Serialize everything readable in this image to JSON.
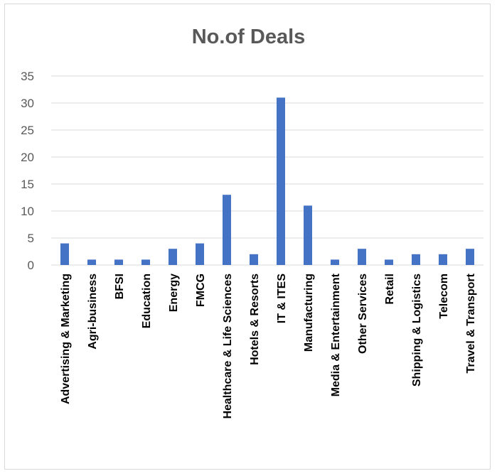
{
  "chart_data": {
    "type": "bar",
    "title": "No.of Deals",
    "xlabel": "",
    "ylabel": "",
    "ylim": [
      0,
      35
    ],
    "yticks": [
      0,
      5,
      10,
      15,
      20,
      25,
      30,
      35
    ],
    "grid": true,
    "legend": "none",
    "bar_color": "#4472c4",
    "categories": [
      "Advertising & Marketing",
      "Agri-business",
      "BFSI",
      "Education",
      "Energy",
      "FMCG",
      "Healthcare & Life Sciences",
      "Hotels & Resorts",
      "IT & ITES",
      "Manufacturing",
      "Media & Entertainment",
      "Other Services",
      "Retail",
      "Shipping & Logistics",
      "Telecom",
      "Travel & Transport"
    ],
    "values": [
      4,
      1,
      1,
      1,
      3,
      4,
      13,
      2,
      31,
      11,
      1,
      3,
      1,
      2,
      2,
      3
    ]
  }
}
